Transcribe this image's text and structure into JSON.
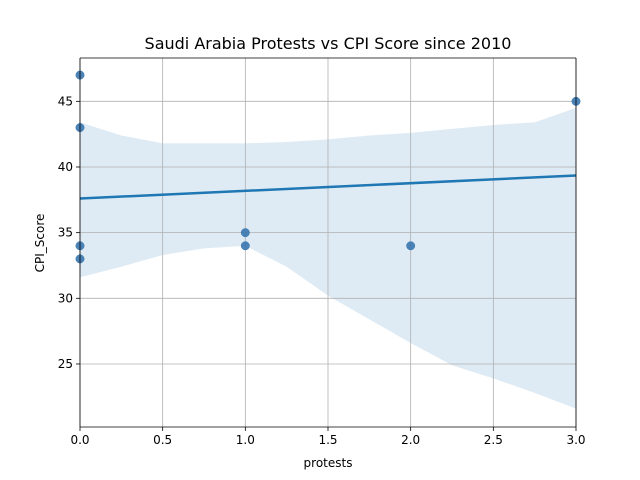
{
  "chart_data": {
    "type": "scatter",
    "title": "Saudi Arabia Protests vs CPI Score since 2010",
    "xlabel": "protests",
    "ylabel": "CPI_Score",
    "xlim": [
      0.0,
      3.0
    ],
    "ylim": [
      20.2,
      48.3
    ],
    "xticks": [
      0.0,
      0.5,
      1.0,
      1.5,
      2.0,
      2.5,
      3.0
    ],
    "xtick_labels": [
      "0.0",
      "0.5",
      "1.0",
      "1.5",
      "2.0",
      "2.5",
      "3.0"
    ],
    "yticks": [
      25,
      30,
      35,
      40,
      45
    ],
    "ytick_labels": [
      "25",
      "30",
      "35",
      "40",
      "45"
    ],
    "grid": true,
    "colors": {
      "points": "#3a77b0",
      "regression_line": "#1f77b4",
      "confidence_band": "#1f77b4",
      "grid": "#b0b0b0",
      "axes": "#000000"
    },
    "points": [
      {
        "x": 0,
        "y": 47
      },
      {
        "x": 0,
        "y": 43
      },
      {
        "x": 0,
        "y": 34
      },
      {
        "x": 0,
        "y": 33
      },
      {
        "x": 1,
        "y": 35
      },
      {
        "x": 1,
        "y": 34
      },
      {
        "x": 2,
        "y": 34
      },
      {
        "x": 3,
        "y": 45
      }
    ],
    "regression_line": {
      "x": [
        0,
        3
      ],
      "y": [
        37.6,
        39.35
      ]
    },
    "confidence_band": {
      "x": [
        0.0,
        0.25,
        0.5,
        0.75,
        1.0,
        1.25,
        1.5,
        1.75,
        2.0,
        2.25,
        2.5,
        2.75,
        3.0
      ],
      "upper": [
        43.4,
        42.4,
        41.8,
        41.8,
        41.8,
        41.9,
        42.1,
        42.4,
        42.6,
        42.9,
        43.2,
        43.4,
        44.5
      ],
      "lower": [
        31.6,
        32.4,
        33.3,
        33.8,
        34.0,
        32.4,
        30.2,
        28.4,
        26.6,
        24.9,
        23.9,
        22.8,
        21.6
      ]
    }
  }
}
